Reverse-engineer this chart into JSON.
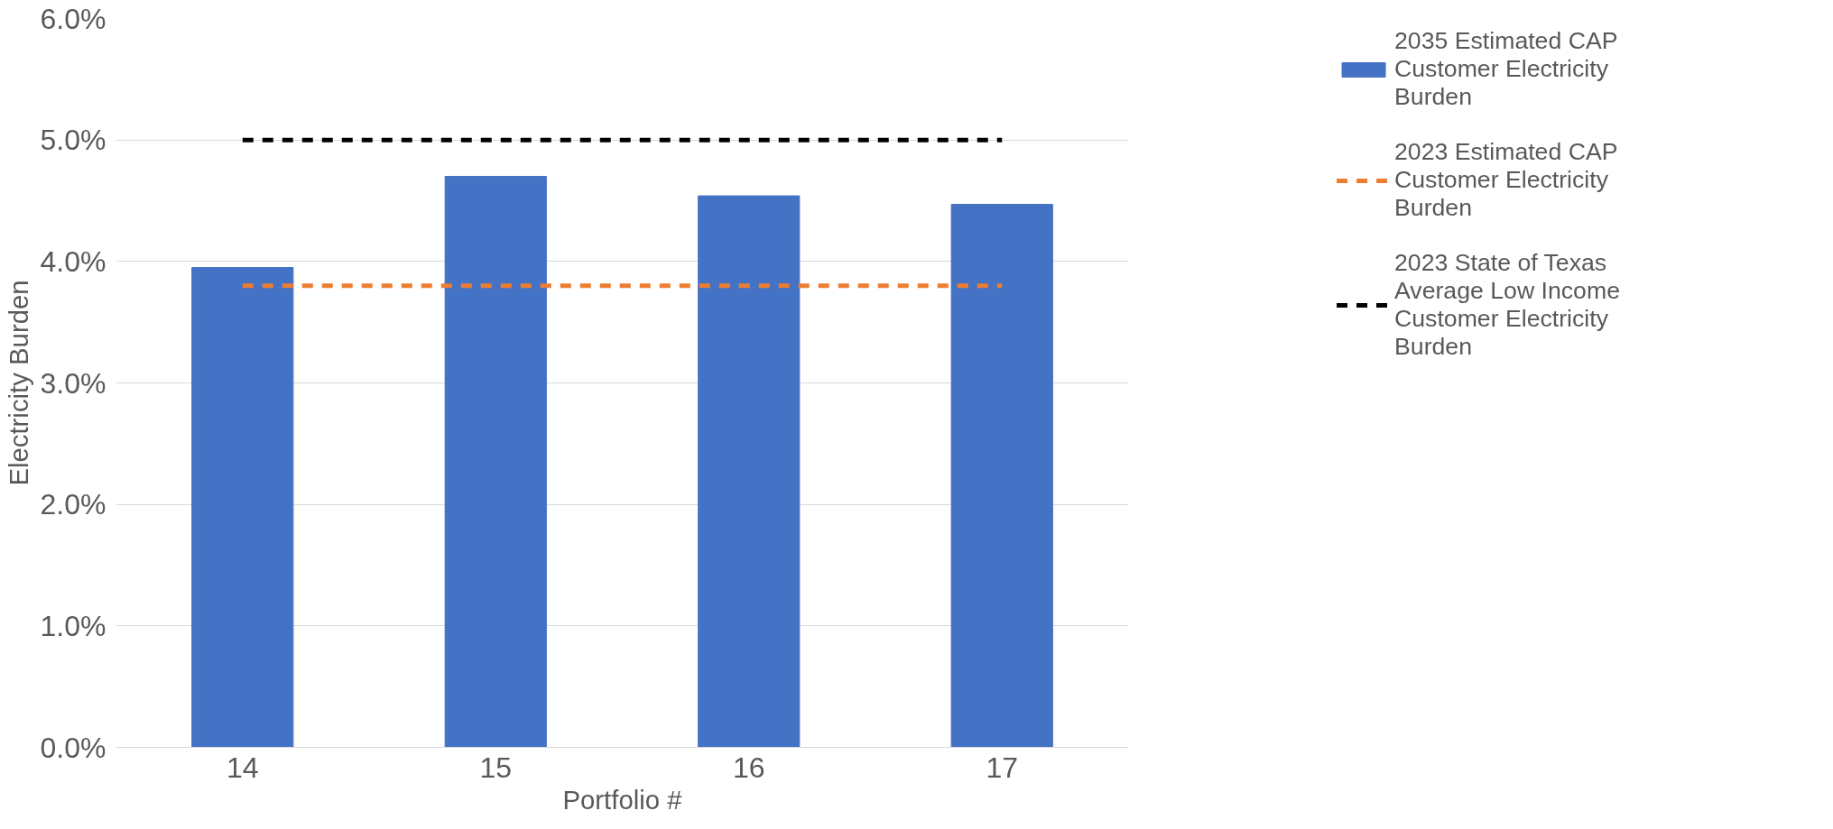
{
  "chart_data": {
    "type": "bar",
    "xlabel": "Portfolio #",
    "ylabel": "Electricity Burden",
    "categories": [
      "14",
      "15",
      "16",
      "17"
    ],
    "series": [
      {
        "name": "2035 Estimated CAP Customer Electricity Burden",
        "color": "#4472c4",
        "values": [
          3.95,
          4.7,
          4.54,
          4.47
        ]
      },
      {
        "name": "2023 Estimated CAP Customer Electricity Burden",
        "type": "line",
        "line_style": "dashed",
        "color": "#ed7d31",
        "values": [
          3.8,
          3.8,
          3.8,
          3.8
        ]
      },
      {
        "name": "2023 State of Texas Average Low Income Customer Electricity Burden",
        "type": "line",
        "line_style": "dashed",
        "color": "#000000",
        "values": [
          5.0,
          5.0,
          5.0,
          5.0
        ]
      }
    ],
    "ylim": [
      0,
      6
    ],
    "yticks": [
      {
        "value": 0,
        "label": "0.0%"
      },
      {
        "value": 1,
        "label": "1.0%"
      },
      {
        "value": 2,
        "label": "2.0%"
      },
      {
        "value": 3,
        "label": "3.0%"
      },
      {
        "value": 4,
        "label": "4.0%"
      },
      {
        "value": 5,
        "label": "5.0%"
      },
      {
        "value": 6,
        "label": "6.0%"
      }
    ],
    "grid": "y",
    "legend": "right"
  }
}
